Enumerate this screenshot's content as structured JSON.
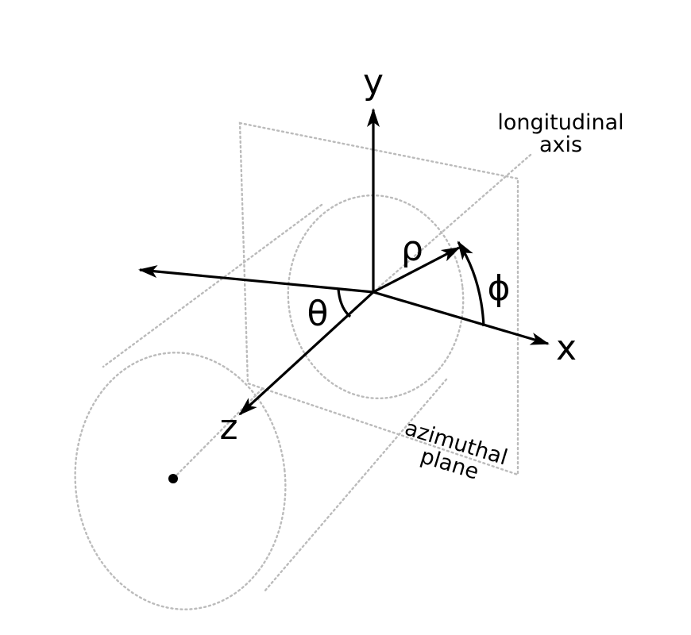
{
  "labels": {
    "y_axis": "y",
    "x_axis": "x",
    "z_axis": "z",
    "rho": "ρ",
    "phi": "ϕ",
    "theta": "θ",
    "longitudinal_line1": "longitudinal",
    "longitudinal_line2": "axis",
    "azimuthal_line1": "azimuthal",
    "azimuthal_line2": "plane"
  },
  "colors": {
    "ink": "#000000",
    "guide": "#bbbbbb"
  }
}
